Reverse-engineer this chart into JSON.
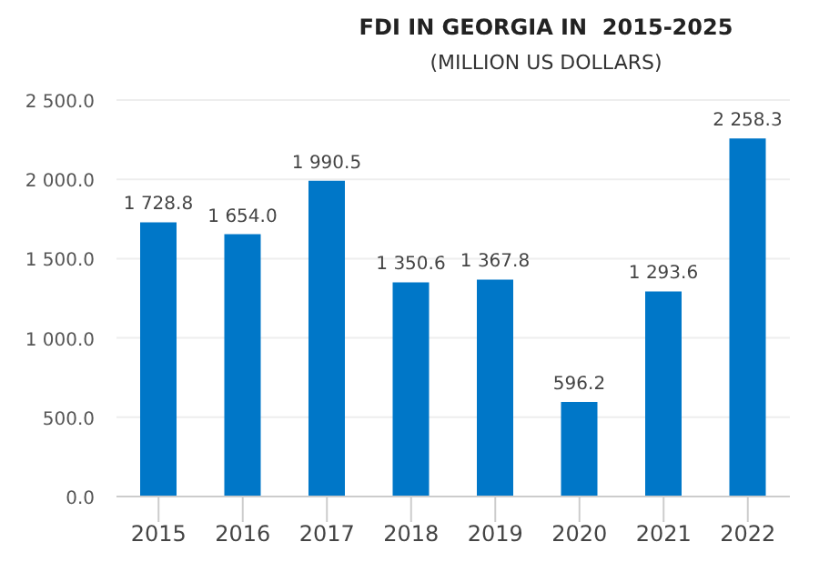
{
  "chart_data": {
    "type": "bar",
    "title": "FDI IN GEORGIA IN  2015-2025",
    "subtitle": "(MILLION US DOLLARS)",
    "categories": [
      "2015",
      "2016",
      "2017",
      "2018",
      "2019",
      "2020",
      "2021",
      "2022"
    ],
    "values": [
      1728.8,
      1654.0,
      1990.5,
      1350.6,
      1367.8,
      596.2,
      1293.6,
      2258.3
    ],
    "value_labels": [
      "1 728.8",
      "1 654.0",
      "1 990.5",
      "1 350.6",
      "1 367.8",
      "596.2",
      "1 293.6",
      "2 258.3"
    ],
    "color": "#0077c8",
    "ylim": [
      0,
      2500
    ],
    "yticks": [
      {
        "value": 0,
        "label": "0.0"
      },
      {
        "value": 500,
        "label": "500.0"
      },
      {
        "value": 1000,
        "label": "1 000.0"
      },
      {
        "value": 1500,
        "label": "1 500.0"
      },
      {
        "value": 2000,
        "label": "2 000.0"
      },
      {
        "value": 2500,
        "label": "2 500.0"
      }
    ],
    "grid": "y"
  }
}
